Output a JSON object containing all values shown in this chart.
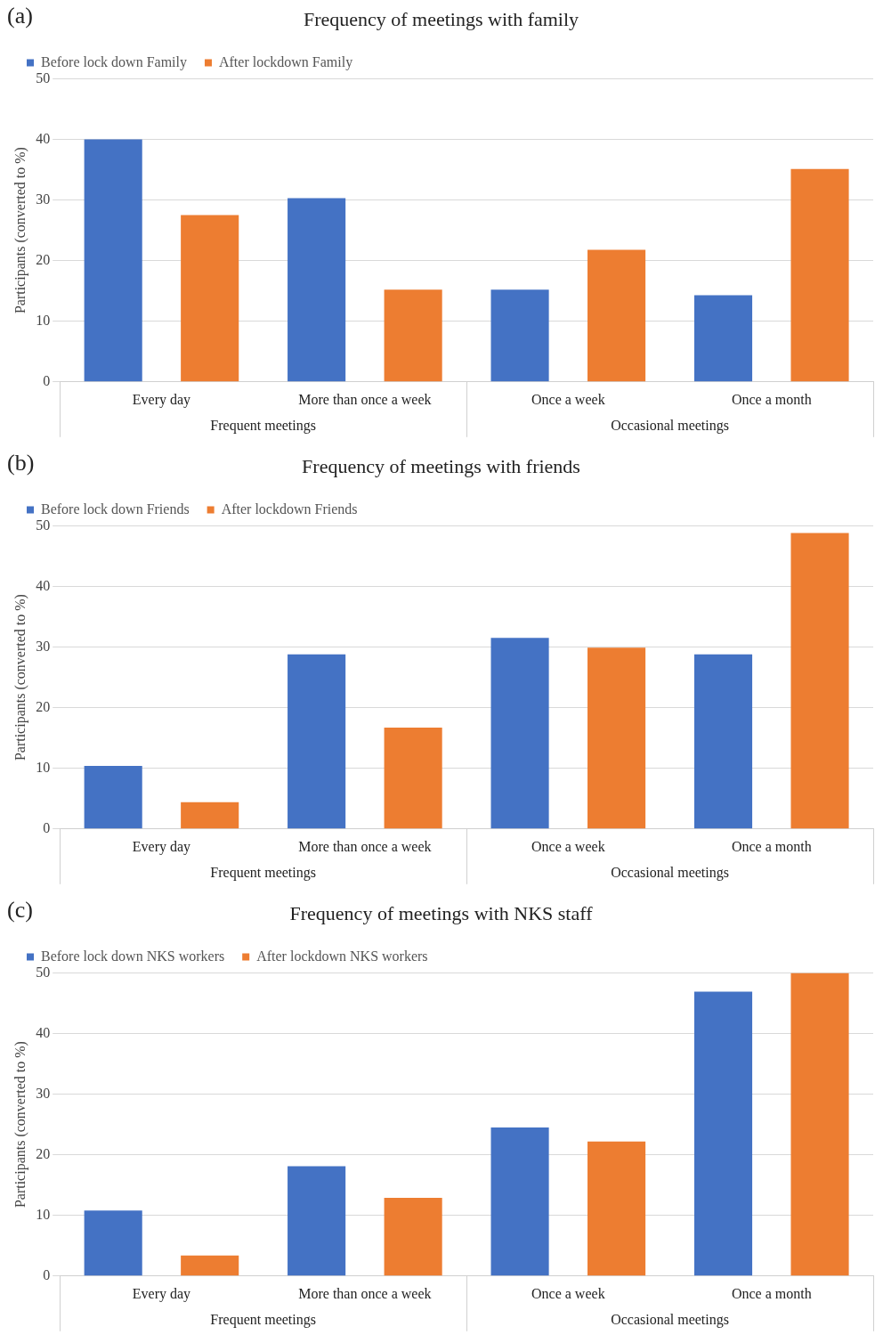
{
  "chart_data": [
    {
      "type": "bar",
      "title": "Frequency of meetings with family",
      "ylabel": "Participants (converted to %)",
      "categories": [
        "Every day",
        "More than once a week",
        "Once a week",
        "Once a month"
      ],
      "series": [
        {
          "name": "Before lock down Family",
          "color": "#4472c4",
          "values": [
            40,
            30.3,
            15.2,
            14.3
          ]
        },
        {
          "name": "After lockdown Family",
          "color": "#ed7d31",
          "values": [
            27.5,
            15.2,
            21.8,
            35.1
          ]
        }
      ],
      "ylim": [
        0,
        50
      ],
      "yticks": [
        0,
        10,
        20,
        30,
        40,
        50
      ],
      "grid": "y",
      "legend": "top left",
      "annotations": [
        "(a)",
        "Frequent meetings",
        "Occasional meetings"
      ]
    },
    {
      "type": "bar",
      "title": "Frequency of meetings with friends",
      "ylabel": "Participants (converted to %)",
      "categories": [
        "Every day",
        "More than once a week",
        "Once a week",
        "Once a month"
      ],
      "series": [
        {
          "name": "Before lock down Friends",
          "color": "#4472c4",
          "values": [
            10.4,
            28.8,
            31.5,
            28.8
          ]
        },
        {
          "name": "After lockdown Friends",
          "color": "#ed7d31",
          "values": [
            4.4,
            16.7,
            29.9,
            48.8
          ]
        }
      ],
      "ylim": [
        0,
        50
      ],
      "yticks": [
        0,
        10,
        20,
        30,
        40,
        50
      ],
      "grid": "y",
      "legend": "top left",
      "annotations": [
        "(b)",
        "Frequent meetings",
        "Occasional meetings"
      ]
    },
    {
      "type": "bar",
      "title": "Frequency of meetings with NKS staff",
      "ylabel": "Participants (converted to %)",
      "categories": [
        "Every day",
        "More than once a week",
        "Once a week",
        "Once a month"
      ],
      "series": [
        {
          "name": "Before lock down NKS workers",
          "color": "#4472c4",
          "values": [
            10.8,
            18.1,
            24.5,
            46.9
          ]
        },
        {
          "name": "After lockdown NKS workers",
          "color": "#ed7d31",
          "values": [
            3.4,
            12.9,
            22.2,
            50
          ]
        }
      ],
      "ylim": [
        0,
        50
      ],
      "yticks": [
        0,
        10,
        20,
        30,
        40,
        50
      ],
      "grid": "y",
      "legend": "top left",
      "annotations": [
        "(c)",
        "Frequent meetings",
        "Occasional meetings"
      ]
    }
  ]
}
